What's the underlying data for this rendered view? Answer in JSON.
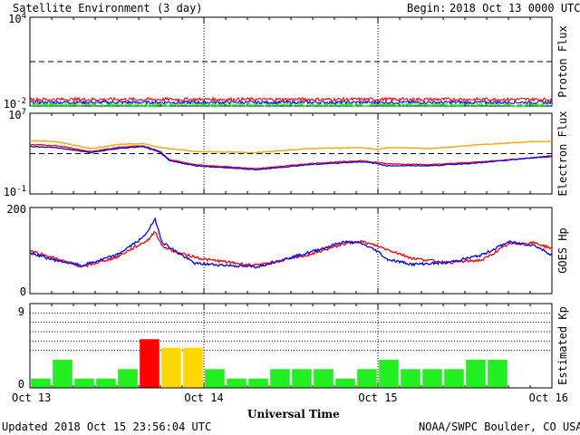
{
  "header": {
    "title": "Satellite Environment (3 day)",
    "begin_label": "Begin:",
    "begin_value": "2018 Oct 13 0000 UTC"
  },
  "footer": {
    "updated": "Updated 2018 Oct 15 23:56:04 UTC",
    "credit": "NOAA/SWPC Boulder, CO USA",
    "xlabel": "Universal Time"
  },
  "colors": {
    "red": "#ff0000",
    "blue": "#0000ff",
    "green": "#00ff00",
    "orange": "#ffa000",
    "yellow": "#ffd700",
    "kp_green": "#22ee22"
  },
  "chart_data": [
    {
      "type": "line",
      "name": "proton-flux",
      "ylabel": "Proton Flux",
      "yscale": "log",
      "ylim_exp": [
        -2,
        4
      ],
      "tick_labels": [
        "10^4",
        "10^-2"
      ],
      "threshold_exp": 1,
      "xlim_days": [
        0,
        3
      ],
      "series": [
        {
          "color": "red",
          "level_exp": -1.55,
          "noise": 0.12
        },
        {
          "color": "blue",
          "level_exp": -1.75,
          "noise": 0.1
        },
        {
          "color": "green",
          "level_exp": -1.9,
          "noise": 0.15
        }
      ]
    },
    {
      "type": "line",
      "name": "electron-flux",
      "ylabel": "Electron Flux",
      "yscale": "log",
      "ylim_exp": [
        -1,
        7
      ],
      "tick_labels": [
        "10^7",
        "10^-1"
      ],
      "threshold_exp": 3,
      "xlim_days": [
        0,
        3
      ],
      "series": [
        {
          "color": "orange",
          "x": [
            0,
            0.15,
            0.35,
            0.5,
            0.65,
            0.75,
            0.95,
            1.3,
            1.6,
            1.9,
            2.0,
            2.05,
            2.3,
            2.6,
            2.9,
            3.0
          ],
          "y": [
            4.3,
            4.2,
            3.5,
            3.9,
            4.0,
            3.6,
            3.2,
            3.1,
            3.5,
            3.6,
            3.4,
            3.6,
            3.5,
            3.9,
            4.2,
            4.2
          ]
        },
        {
          "color": "red",
          "x": [
            0,
            0.15,
            0.35,
            0.5,
            0.65,
            0.75,
            0.8,
            0.95,
            1.3,
            1.6,
            1.9,
            2.0,
            2.05,
            2.3,
            2.6,
            2.9,
            3.0
          ],
          "y": [
            3.9,
            3.8,
            3.2,
            3.6,
            3.8,
            3.2,
            2.4,
            1.9,
            1.5,
            2.0,
            2.3,
            2.1,
            2.0,
            1.9,
            2.2,
            2.6,
            2.7
          ]
        },
        {
          "color": "blue",
          "x": [
            0,
            0.15,
            0.35,
            0.5,
            0.65,
            0.75,
            0.8,
            0.95,
            1.3,
            1.6,
            1.9,
            2.0,
            2.05,
            2.3,
            2.6,
            2.9,
            3.0
          ],
          "y": [
            3.7,
            3.6,
            3.1,
            3.5,
            3.7,
            3.1,
            2.3,
            1.8,
            1.4,
            1.9,
            2.2,
            2.0,
            1.8,
            1.8,
            2.1,
            2.6,
            2.8
          ]
        }
      ]
    },
    {
      "type": "line",
      "name": "goes-hp",
      "ylabel": "GOES Hp",
      "ylim": [
        0,
        200
      ],
      "tick_labels": [
        "200",
        "0"
      ],
      "xlim_days": [
        0,
        3
      ],
      "series": [
        {
          "color": "red",
          "x": [
            0,
            0.12,
            0.3,
            0.5,
            0.68,
            0.72,
            0.76,
            0.85,
            1.0,
            1.3,
            1.6,
            1.8,
            1.9,
            2.0,
            2.2,
            2.4,
            2.6,
            2.75,
            2.9,
            3.0
          ],
          "y": [
            100,
            85,
            62,
            85,
            125,
            145,
            110,
            95,
            80,
            65,
            90,
            115,
            122,
            110,
            82,
            72,
            78,
            115,
            118,
            105
          ]
        },
        {
          "color": "blue",
          "x": [
            0,
            0.12,
            0.3,
            0.5,
            0.65,
            0.72,
            0.76,
            0.85,
            0.95,
            1.3,
            1.6,
            1.8,
            1.9,
            2.0,
            2.05,
            2.2,
            2.4,
            2.6,
            2.75,
            2.9,
            3.0
          ],
          "y": [
            95,
            80,
            65,
            90,
            130,
            172,
            120,
            95,
            70,
            62,
            95,
            120,
            118,
            98,
            80,
            68,
            72,
            90,
            120,
            112,
            90
          ]
        }
      ]
    },
    {
      "type": "bar",
      "name": "estimated-kp",
      "ylabel": "Estimated Kp",
      "ylim": [
        0,
        9
      ],
      "tick_labels": [
        "9",
        "0"
      ],
      "gridlines": [
        4,
        5,
        6,
        7,
        8
      ],
      "bar_width_hours": 3,
      "values": [
        1,
        3,
        1,
        1,
        2,
        5.2,
        4.3,
        4.3,
        2,
        1,
        1,
        2,
        2,
        2,
        1,
        2,
        3,
        2,
        2,
        2,
        3,
        3
      ],
      "bar_colors": [
        "kp_green",
        "kp_green",
        "kp_green",
        "kp_green",
        "kp_green",
        "red",
        "yellow",
        "yellow",
        "kp_green",
        "kp_green",
        "kp_green",
        "kp_green",
        "kp_green",
        "kp_green",
        "kp_green",
        "kp_green",
        "kp_green",
        "kp_green",
        "kp_green",
        "kp_green",
        "kp_green",
        "kp_green"
      ],
      "x_ticks": [
        "Oct 13",
        "Oct 14",
        "Oct 15",
        "Oct 16"
      ]
    }
  ]
}
